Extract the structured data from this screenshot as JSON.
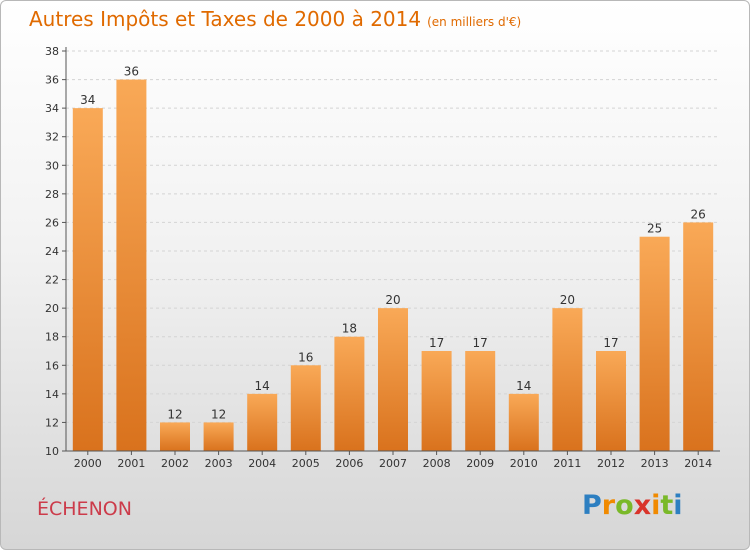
{
  "chart_data": {
    "type": "bar",
    "title": "Autres Impôts et Taxes de 2000 à 2014",
    "unit_note": "(en milliers d'€)",
    "categories": [
      "2000",
      "2001",
      "2002",
      "2003",
      "2004",
      "2005",
      "2006",
      "2007",
      "2008",
      "2009",
      "2010",
      "2011",
      "2012",
      "2013",
      "2014"
    ],
    "values": [
      34,
      36,
      12,
      12,
      14,
      16,
      18,
      20,
      17,
      17,
      14,
      20,
      17,
      25,
      26
    ],
    "ylim": [
      10,
      38
    ],
    "yticks": [
      10,
      12,
      14,
      16,
      18,
      20,
      22,
      24,
      26,
      28,
      30,
      32,
      34,
      36,
      38
    ],
    "grid": true,
    "bar_color": "#f0892a"
  },
  "footer": {
    "commune": "ÉCHENON",
    "logo_parts": [
      "P",
      "r",
      "o",
      "x",
      "i",
      "t",
      "i"
    ]
  }
}
